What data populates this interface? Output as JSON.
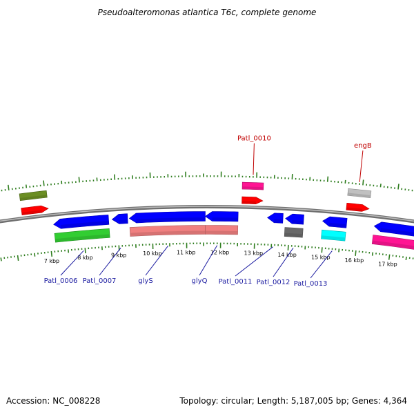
{
  "title": "Pseudoalteromonas atlantica T6c, complete genome",
  "footer": {
    "accession": "Accession: NC_008228",
    "summary": "Topology: circular; Length: 5,187,005 bp; Genes: 4,364"
  },
  "colors": {
    "backbone": "#8c8c8c",
    "tick": "#2e7d1e",
    "label_top": "#c00000",
    "label_bottom": "#1a1aa0"
  },
  "scale_ticks": [
    "7 kbp",
    "8 kbp",
    "9 kbp",
    "10 kbp",
    "11 kbp",
    "12 kbp",
    "13 kbp",
    "14 kbp",
    "15 kbp",
    "16 kbp",
    "17 kbp"
  ],
  "features": [
    {
      "id": "f1",
      "strand": "top",
      "track": 1,
      "dir": "none",
      "start": 6.28,
      "end": 7.05,
      "color": "#6b8e23"
    },
    {
      "id": "f2",
      "strand": "top",
      "track": 0,
      "dir": "right",
      "start": 6.28,
      "end": 7.05,
      "color": "#ff0000"
    },
    {
      "id": "f3",
      "strand": "top",
      "track": 1,
      "dir": "none",
      "start": 12.6,
      "end": 13.2,
      "color": "#ff1493"
    },
    {
      "id": "f4",
      "strand": "top",
      "track": 0,
      "dir": "right",
      "start": 12.6,
      "end": 13.2,
      "color": "#ff0000"
    },
    {
      "id": "f5",
      "strand": "top",
      "track": 1,
      "dir": "none",
      "start": 15.6,
      "end": 16.25,
      "color": "#c0c0c0"
    },
    {
      "id": "f6",
      "strand": "top",
      "track": 0,
      "dir": "right",
      "start": 15.6,
      "end": 16.25,
      "color": "#ff0000"
    },
    {
      "id": "f7",
      "strand": "bottom",
      "track": 0,
      "dir": "left",
      "start": 7.15,
      "end": 8.75,
      "color": "#0000ff"
    },
    {
      "id": "f8",
      "strand": "bottom",
      "track": 1,
      "dir": "none",
      "start": 7.15,
      "end": 8.75,
      "color": "#32cd32"
    },
    {
      "id": "f9",
      "strand": "bottom",
      "track": 0,
      "dir": "left",
      "start": 8.85,
      "end": 9.3,
      "color": "#0000ff"
    },
    {
      "id": "f10",
      "strand": "bottom",
      "track": 0,
      "dir": "left",
      "start": 9.35,
      "end": 11.55,
      "color": "#0000ff"
    },
    {
      "id": "f11",
      "strand": "bottom",
      "track": 1,
      "dir": "none",
      "start": 9.35,
      "end": 11.55,
      "color": "#f08080"
    },
    {
      "id": "f12",
      "strand": "bottom",
      "track": 0,
      "dir": "left",
      "start": 11.55,
      "end": 12.5,
      "color": "#0000ff"
    },
    {
      "id": "f13",
      "strand": "bottom",
      "track": 1,
      "dir": "none",
      "start": 11.55,
      "end": 12.5,
      "color": "#f08080"
    },
    {
      "id": "f14",
      "strand": "bottom",
      "track": 0,
      "dir": "left",
      "start": 13.35,
      "end": 13.8,
      "color": "#0000ff"
    },
    {
      "id": "f15",
      "strand": "bottom",
      "track": 0,
      "dir": "left",
      "start": 13.87,
      "end": 14.4,
      "color": "#0000ff"
    },
    {
      "id": "f16",
      "strand": "bottom",
      "track": 1,
      "dir": "none",
      "start": 13.87,
      "end": 14.4,
      "color": "#696969"
    },
    {
      "id": "f17",
      "strand": "bottom",
      "track": 0,
      "dir": "left",
      "start": 14.95,
      "end": 15.65,
      "color": "#0000ff"
    },
    {
      "id": "f18",
      "strand": "bottom",
      "track": 1,
      "dir": "none",
      "start": 14.95,
      "end": 15.65,
      "color": "#00ffff"
    },
    {
      "id": "f19",
      "strand": "bottom",
      "track": 0,
      "dir": "left",
      "start": 16.45,
      "end": 18.2,
      "color": "#0000ff"
    },
    {
      "id": "f20",
      "strand": "bottom",
      "track": 1,
      "dir": "none",
      "start": 16.45,
      "end": 18.2,
      "color": "#ff1493"
    }
  ],
  "labels_top": [
    {
      "text": "Patl_0010",
      "pos": 12.9
    },
    {
      "text": "engB",
      "pos": 15.9
    }
  ],
  "labels_bottom": [
    {
      "text": "Patl_0006",
      "pos": 7.95
    },
    {
      "text": "Patl_0007",
      "pos": 9.05
    },
    {
      "text": "glyS",
      "pos": 10.45
    },
    {
      "text": "glyQ",
      "pos": 11.9
    },
    {
      "text": "Patl_0011",
      "pos": 13.55
    },
    {
      "text": "Patl_0012",
      "pos": 14.15
    },
    {
      "text": "Patl_0013",
      "pos": 15.3
    }
  ]
}
